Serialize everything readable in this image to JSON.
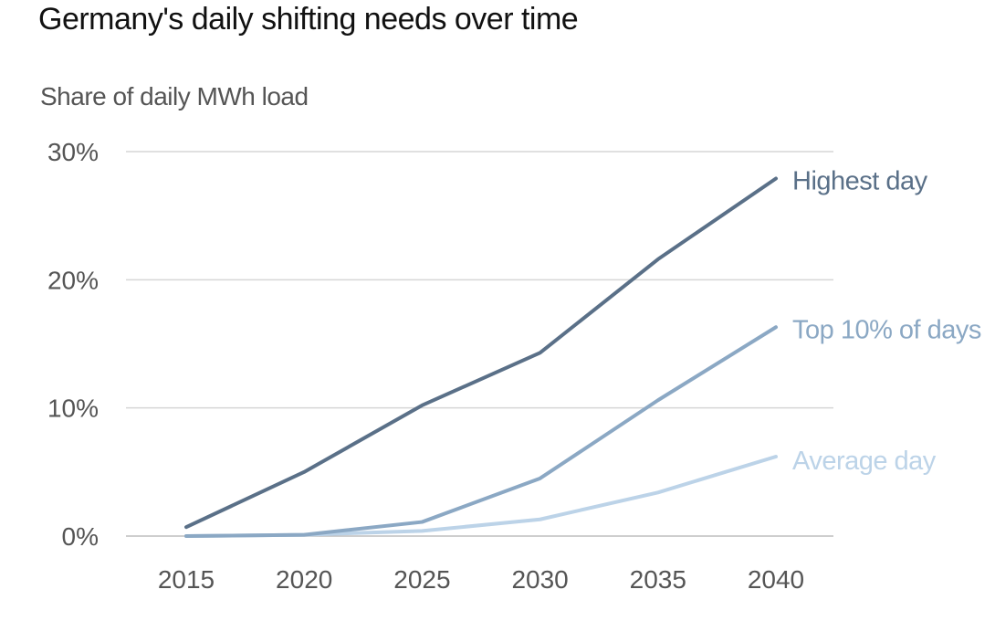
{
  "chart_data": {
    "type": "line",
    "title": "Germany's daily shifting needs over time",
    "ylabel": "Share of daily MWh load",
    "xlabel": "",
    "x": [
      2015,
      2020,
      2025,
      2030,
      2035,
      2040
    ],
    "x_tick_labels": [
      "2015",
      "2020",
      "2025",
      "2030",
      "2035",
      "2040"
    ],
    "ylim": [
      0,
      30
    ],
    "y_ticks": [
      0,
      10,
      20,
      30
    ],
    "y_tick_labels": [
      "0%",
      "10%",
      "20%",
      "30%"
    ],
    "grid": true,
    "series": [
      {
        "name": "Highest day",
        "color": "#5a7088",
        "values": [
          0.7,
          5.0,
          10.2,
          14.3,
          21.6,
          27.9
        ]
      },
      {
        "name": "Top 10% of days",
        "color": "#8ba8c4",
        "values": [
          0.0,
          0.1,
          1.1,
          4.5,
          10.6,
          16.3
        ]
      },
      {
        "name": "Average day",
        "color": "#bcd3e8",
        "values": [
          0.0,
          0.1,
          0.4,
          1.3,
          3.4,
          6.2
        ]
      }
    ]
  }
}
